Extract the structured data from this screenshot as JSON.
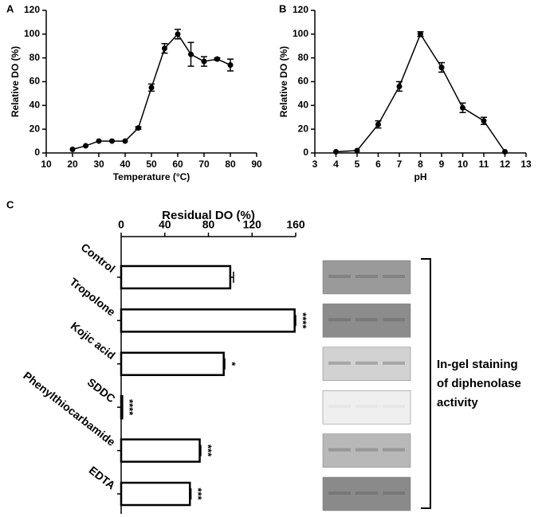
{
  "chart_data": [
    {
      "type": "line",
      "panel": "A",
      "xlabel": "Temperature (°C)",
      "ylabel": "Relative DO (%)",
      "x": [
        20,
        25,
        30,
        35,
        40,
        45,
        50,
        55,
        60,
        65,
        70,
        75,
        80
      ],
      "values": [
        3,
        6,
        10,
        10,
        10,
        21,
        55,
        88,
        100,
        83,
        77,
        79,
        74
      ],
      "errors": [
        0,
        0,
        0,
        0,
        0,
        1,
        3,
        4,
        4,
        10,
        4,
        1,
        5
      ],
      "color": "#000000",
      "xlim": [
        10,
        90
      ],
      "xticks": [
        10,
        20,
        30,
        40,
        50,
        60,
        70,
        80,
        90
      ],
      "ylim": [
        0,
        120
      ],
      "yticks": [
        0,
        20,
        40,
        60,
        80,
        100,
        120
      ]
    },
    {
      "type": "line",
      "panel": "B",
      "xlabel": "pH",
      "ylabel": "Relative DO (%)",
      "x": [
        4,
        5,
        6,
        7,
        8,
        9,
        10,
        11,
        12
      ],
      "values": [
        1,
        2,
        24,
        56,
        100,
        72,
        38,
        27,
        1
      ],
      "errors": [
        0,
        0,
        3,
        4,
        2,
        4,
        4,
        3,
        0
      ],
      "color": "#000000",
      "xlim": [
        3,
        13
      ],
      "xticks": [
        3,
        4,
        5,
        6,
        7,
        8,
        9,
        10,
        11,
        12,
        13
      ],
      "ylim": [
        0,
        120
      ],
      "yticks": [
        0,
        20,
        40,
        60,
        80,
        100,
        120
      ]
    },
    {
      "type": "hbar",
      "panel": "C",
      "xlabel": "Residual DO (%)",
      "categories": [
        "Control",
        "Tropolone",
        "Kojic acid",
        "SDDC",
        "Phenylthiocarbamide",
        "EDTA"
      ],
      "values": [
        100,
        159,
        94,
        1,
        72,
        63
      ],
      "errors": [
        3,
        1,
        1,
        0,
        1,
        1
      ],
      "significance": [
        null,
        "****",
        "*",
        "****",
        "***",
        "***"
      ],
      "color": "#ffffff",
      "xlim": [
        0,
        160
      ],
      "xticks": [
        0,
        40,
        80,
        120,
        160
      ],
      "gel_label": [
        "In-gel staining",
        "of diphenolase",
        "activity"
      ]
    }
  ]
}
